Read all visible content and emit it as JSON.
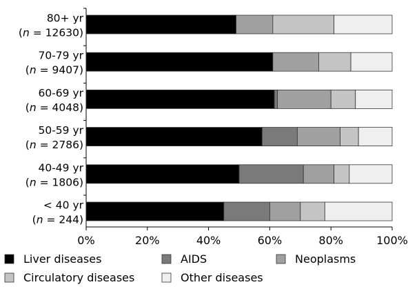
{
  "chart_data": {
    "type": "bar",
    "orientation": "horizontal",
    "stacked": true,
    "categories": [
      {
        "label": "80+ yr",
        "n_label": "(n = 12630)",
        "n_prefix": "(",
        "n_var": "n",
        "n_rest": " = 12630)"
      },
      {
        "label": "70-79 yr",
        "n_label": "(n = 9407)",
        "n_prefix": "(",
        "n_var": "n",
        "n_rest": " = 9407)"
      },
      {
        "label": "60-69 yr",
        "n_label": "(n = 4048)",
        "n_prefix": "(",
        "n_var": "n",
        "n_rest": " = 4048)"
      },
      {
        "label": "50-59 yr",
        "n_label": "(n = 2786)",
        "n_prefix": "(",
        "n_var": "n",
        "n_rest": " = 2786)"
      },
      {
        "label": "40-49 yr",
        "n_label": "(n = 1806)",
        "n_prefix": "(",
        "n_var": "n",
        "n_rest": " = 1806)"
      },
      {
        "label": "< 40 yr",
        "n_label": "(n = 244)",
        "n_prefix": "(",
        "n_var": "n",
        "n_rest": " = 244)"
      }
    ],
    "series": [
      {
        "name": "Liver diseases",
        "color": "#000000",
        "values": [
          49,
          61,
          61.5,
          57.5,
          50,
          45
        ]
      },
      {
        "name": "AIDS",
        "color": "#7a7a7a",
        "values": [
          0,
          0,
          1,
          11.5,
          21,
          15
        ]
      },
      {
        "name": "Neoplasms",
        "color": "#a0a0a0",
        "values": [
          12,
          15,
          17.5,
          14,
          10,
          10
        ]
      },
      {
        "name": "Circulatory diseases",
        "color": "#c4c4c4",
        "values": [
          20,
          10.5,
          8,
          6,
          5,
          8
        ]
      },
      {
        "name": "Other diseases",
        "color": "#efefef",
        "values": [
          19,
          13.5,
          12,
          11,
          14,
          22
        ]
      }
    ],
    "xlim": [
      0,
      100
    ],
    "x_ticks": [
      "0%",
      "20%",
      "40%",
      "60%",
      "80%",
      "100%"
    ],
    "x_tick_values": [
      0,
      20,
      40,
      60,
      80,
      100
    ],
    "grid": false,
    "legend_placement": "bottom",
    "title": "",
    "xlabel": "",
    "ylabel": ""
  }
}
